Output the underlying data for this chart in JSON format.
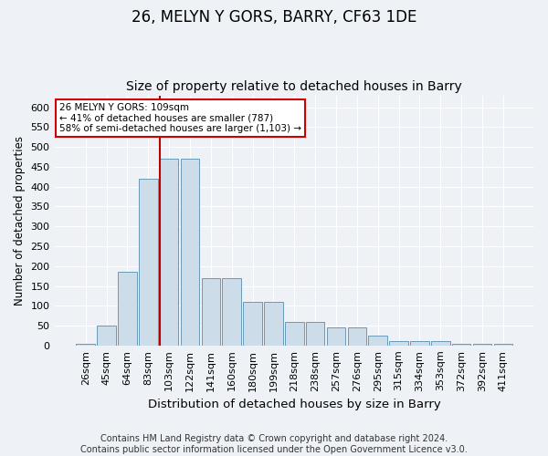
{
  "title": "26, MELYN Y GORS, BARRY, CF63 1DE",
  "subtitle": "Size of property relative to detached houses in Barry",
  "xlabel": "Distribution of detached houses by size in Barry",
  "ylabel": "Number of detached properties",
  "categories": [
    "26sqm",
    "45sqm",
    "64sqm",
    "83sqm",
    "103sqm",
    "122sqm",
    "141sqm",
    "160sqm",
    "180sqm",
    "199sqm",
    "218sqm",
    "238sqm",
    "257sqm",
    "276sqm",
    "295sqm",
    "315sqm",
    "334sqm",
    "353sqm",
    "372sqm",
    "392sqm",
    "411sqm"
  ],
  "values": [
    5,
    50,
    185,
    420,
    470,
    470,
    170,
    170,
    110,
    110,
    60,
    60,
    45,
    45,
    25,
    12,
    12,
    10,
    5,
    3,
    5
  ],
  "bar_color": "#ccdce8",
  "bar_edge_color": "#6a9ab8",
  "vline_x_index": 4.0,
  "vline_color": "#bb0000",
  "annotation_text": "26 MELYN Y GORS: 109sqm\n← 41% of detached houses are smaller (787)\n58% of semi-detached houses are larger (1,103) →",
  "annotation_box_color": "#ffffff",
  "annotation_box_edge_color": "#cc0000",
  "ylim": [
    0,
    630
  ],
  "yticks": [
    0,
    50,
    100,
    150,
    200,
    250,
    300,
    350,
    400,
    450,
    500,
    550,
    600
  ],
  "footnote": "Contains HM Land Registry data © Crown copyright and database right 2024.\nContains public sector information licensed under the Open Government Licence v3.0.",
  "background_color": "#eef2f6",
  "plot_background_color": "#eef2f6",
  "title_fontsize": 12,
  "subtitle_fontsize": 10,
  "xlabel_fontsize": 9.5,
  "ylabel_fontsize": 8.5,
  "footnote_fontsize": 7,
  "tick_fontsize": 8,
  "annot_fontsize": 7.5
}
